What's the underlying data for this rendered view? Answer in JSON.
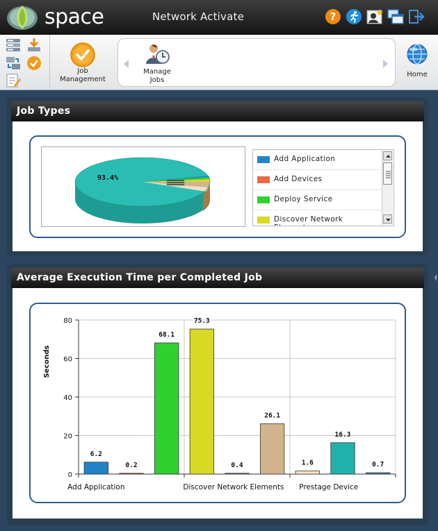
{
  "header": {
    "logo_text": "space",
    "app_title": "Network Activate",
    "icons": [
      "help-icon",
      "runner-icon",
      "user-star-icon",
      "windows-icon",
      "logout-icon"
    ]
  },
  "toolbar": {
    "left_icons": [
      "database-list-icon",
      "download-icon",
      "transfer-icon",
      "check-circle-icon",
      "edit-form-icon"
    ],
    "job_management_label": "Job\nManagement",
    "manage_jobs_label": "Manage\nJobs",
    "home_label": "Home"
  },
  "job_types": {
    "title": "Job Types",
    "pie_labels": [
      "93.4%"
    ],
    "legend": [
      {
        "label": "Add Application",
        "color": "#2283c8"
      },
      {
        "label": "Add Devices",
        "color": "#ea6a45"
      },
      {
        "label": "Deploy Service",
        "color": "#2fd12f"
      },
      {
        "label": "Discover Network Elements",
        "color": "#d8d827"
      }
    ]
  },
  "execution_time": {
    "title": "Average Execution Time per Completed Job",
    "chart_data": {
      "type": "bar",
      "ylabel": "Seconds",
      "ylim": [
        0,
        80
      ],
      "yticks": [
        0,
        20,
        40,
        60,
        80
      ],
      "grid": true,
      "category_labels": [
        "Add Application",
        "Discover Network Elements",
        "Prestage Device"
      ],
      "values": [
        6.2,
        0.2,
        68.1,
        75.3,
        0.4,
        26.1,
        1.6,
        16.3,
        0.7
      ],
      "value_labels": [
        "6.2",
        "0.2",
        "68.1",
        "75.3",
        "0.4",
        "26.1",
        "1.6",
        "16.3",
        "0.7"
      ],
      "colors": [
        "#2283c8",
        "#ea6a45",
        "#2fd12f",
        "#d8d827",
        "#7f68b3",
        "#d2b48c",
        "#fbe3c4",
        "#20b2aa",
        "#4a74b8"
      ]
    }
  }
}
